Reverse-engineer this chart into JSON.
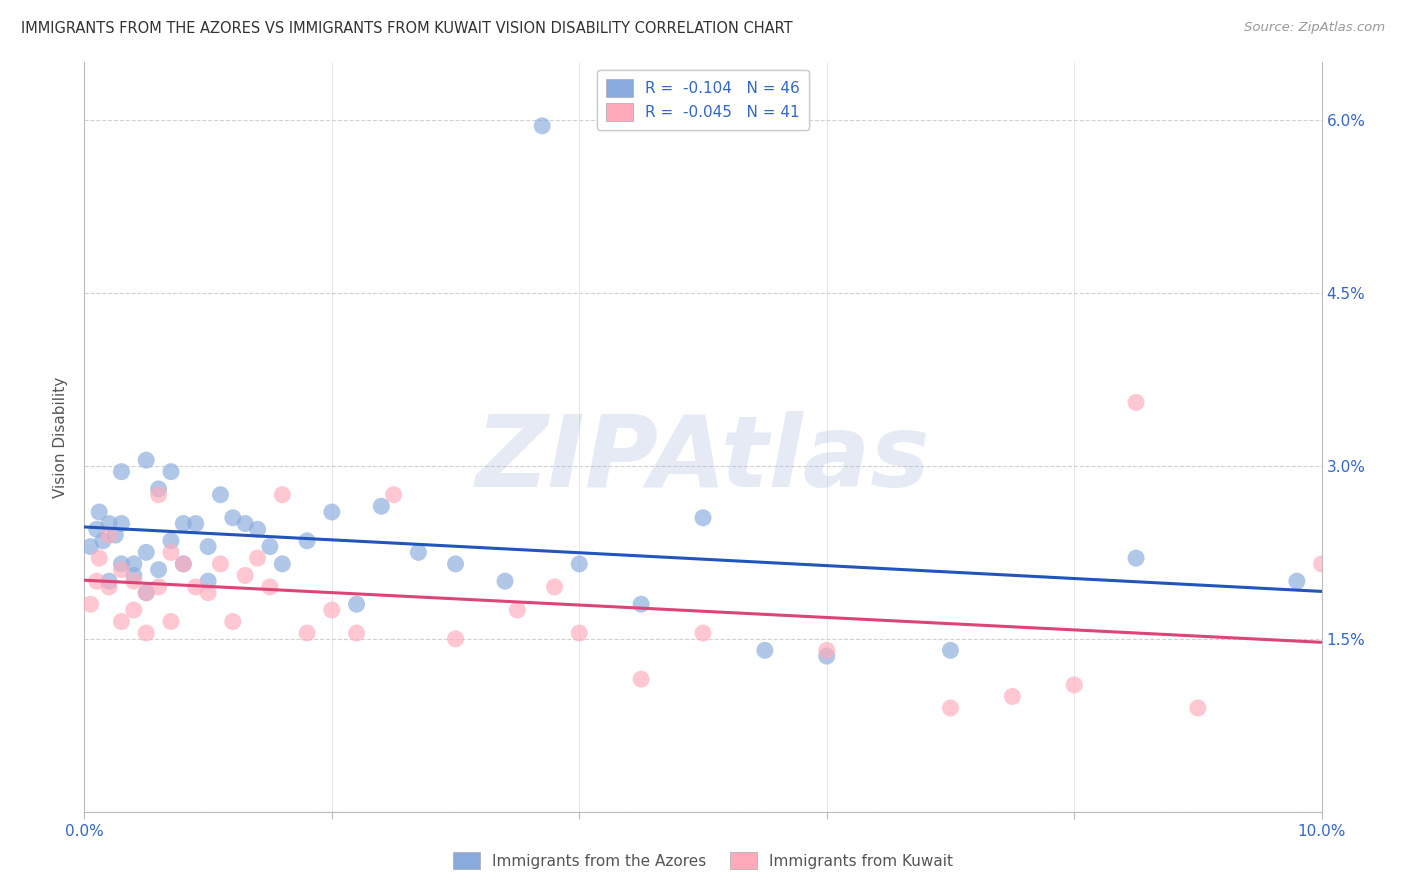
{
  "title": "IMMIGRANTS FROM THE AZORES VS IMMIGRANTS FROM KUWAIT VISION DISABILITY CORRELATION CHART",
  "source": "Source: ZipAtlas.com",
  "ylabel": "Vision Disability",
  "xlim": [
    0.0,
    0.1
  ],
  "ylim": [
    0.0,
    0.065
  ],
  "azores_color": "#88AADD",
  "kuwait_color": "#FFAABB",
  "azores_line_color": "#2255BB",
  "kuwait_line_color": "#DD4477",
  "legend_R_azores": "R =  -0.104",
  "legend_N_azores": "N = 46",
  "legend_R_kuwait": "R =  -0.045",
  "legend_N_kuwait": "N = 41",
  "azores_label": "Immigrants from the Azores",
  "kuwait_label": "Immigrants from Kuwait",
  "watermark": "ZIPAtlas",
  "background_color": "#ffffff",
  "grid_color": "#cccccc",
  "azores_x": [
    0.0005,
    0.001,
    0.0012,
    0.0015,
    0.002,
    0.002,
    0.0025,
    0.003,
    0.003,
    0.003,
    0.004,
    0.004,
    0.005,
    0.005,
    0.005,
    0.006,
    0.006,
    0.007,
    0.007,
    0.008,
    0.008,
    0.009,
    0.01,
    0.01,
    0.011,
    0.012,
    0.013,
    0.014,
    0.015,
    0.016,
    0.018,
    0.02,
    0.022,
    0.024,
    0.027,
    0.03,
    0.034,
    0.037,
    0.04,
    0.045,
    0.05,
    0.055,
    0.06,
    0.07,
    0.085,
    0.098
  ],
  "azores_y": [
    0.023,
    0.0245,
    0.026,
    0.0235,
    0.025,
    0.02,
    0.024,
    0.0295,
    0.0215,
    0.025,
    0.0205,
    0.0215,
    0.0305,
    0.0225,
    0.019,
    0.021,
    0.028,
    0.0295,
    0.0235,
    0.0215,
    0.025,
    0.025,
    0.023,
    0.02,
    0.0275,
    0.0255,
    0.025,
    0.0245,
    0.023,
    0.0215,
    0.0235,
    0.026,
    0.018,
    0.0265,
    0.0225,
    0.0215,
    0.02,
    0.0595,
    0.0215,
    0.018,
    0.0255,
    0.014,
    0.0135,
    0.014,
    0.022,
    0.02
  ],
  "kuwait_x": [
    0.0005,
    0.001,
    0.0012,
    0.002,
    0.002,
    0.003,
    0.003,
    0.004,
    0.004,
    0.005,
    0.005,
    0.006,
    0.006,
    0.007,
    0.007,
    0.008,
    0.009,
    0.01,
    0.011,
    0.012,
    0.013,
    0.014,
    0.015,
    0.016,
    0.018,
    0.02,
    0.022,
    0.025,
    0.03,
    0.035,
    0.038,
    0.04,
    0.045,
    0.05,
    0.06,
    0.07,
    0.075,
    0.08,
    0.085,
    0.09,
    0.1
  ],
  "kuwait_y": [
    0.018,
    0.02,
    0.022,
    0.0195,
    0.024,
    0.0165,
    0.021,
    0.02,
    0.0175,
    0.019,
    0.0155,
    0.0195,
    0.0275,
    0.0165,
    0.0225,
    0.0215,
    0.0195,
    0.019,
    0.0215,
    0.0165,
    0.0205,
    0.022,
    0.0195,
    0.0275,
    0.0155,
    0.0175,
    0.0155,
    0.0275,
    0.015,
    0.0175,
    0.0195,
    0.0155,
    0.0115,
    0.0155,
    0.014,
    0.009,
    0.01,
    0.011,
    0.0355,
    0.009,
    0.0215
  ]
}
